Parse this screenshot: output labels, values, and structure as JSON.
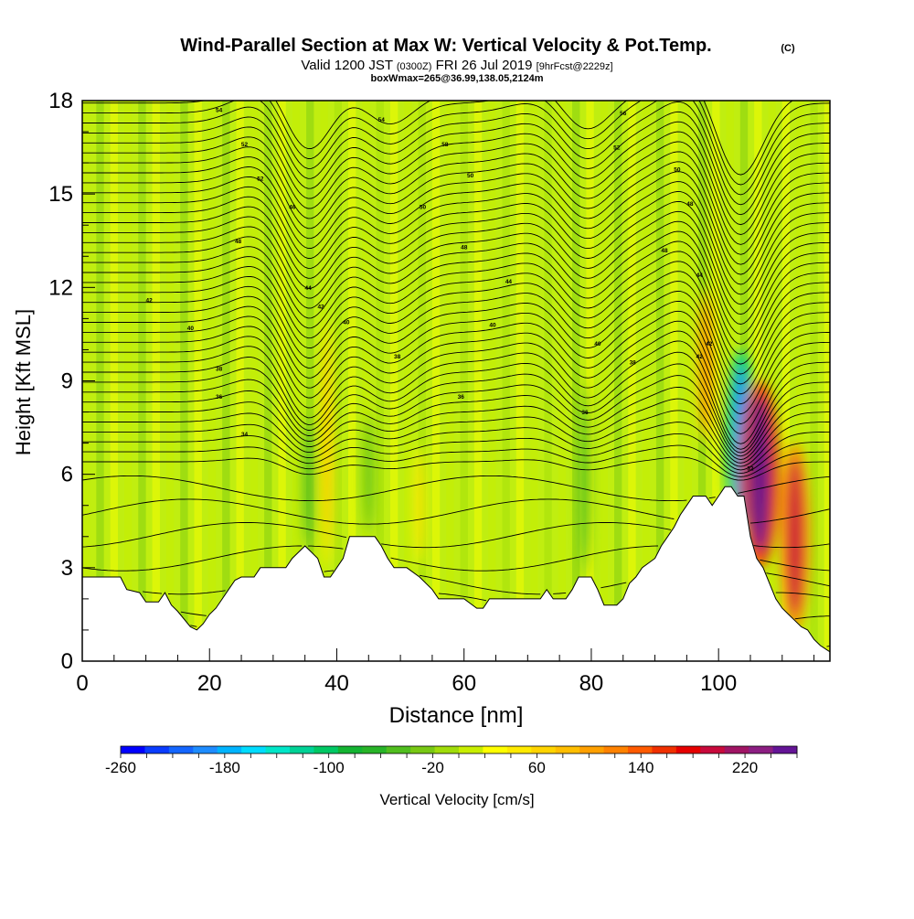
{
  "header": {
    "title": "Wind-Parallel Section at Max W: Vertical Velocity & Pot.Temp.",
    "copyright": "(C)",
    "valid_main": "Valid 1200 JST",
    "valid_utc": "(0300Z)",
    "valid_date": "FRI 26 Jul 2019",
    "forecast": "[9hrFcst@2229z]",
    "box_info": "boxWmax=265@36.99,138.05,2124m"
  },
  "chart_data": {
    "type": "heatmap",
    "xlabel": "Distance [nm]",
    "ylabel": "Height [Kft MSL]",
    "xlim": [
      0,
      117.5
    ],
    "ylim": [
      0,
      18
    ],
    "x_ticks": [
      0,
      20,
      40,
      60,
      80,
      100
    ],
    "x_tick_labels": [
      "0",
      "20",
      "40",
      "60",
      "80",
      "100"
    ],
    "y_ticks": [
      0,
      3,
      6,
      9,
      12,
      15,
      18
    ],
    "y_tick_labels": [
      "0",
      "3",
      "6",
      "9",
      "12",
      "15",
      "18"
    ],
    "grid": false,
    "colorbar": {
      "label": "Vertical Velocity [cm/s]",
      "min": -260,
      "max": 260,
      "step": 20,
      "tick_values": [
        -260,
        -180,
        -100,
        -20,
        60,
        140,
        220
      ],
      "tick_labels": [
        "-260",
        "-180",
        "-100",
        "-20",
        "60",
        "140",
        "220"
      ],
      "colors": [
        "#0000ff",
        "#0a3cff",
        "#1466ff",
        "#1e8cff",
        "#00b4ff",
        "#00dcff",
        "#00e6c8",
        "#00d296",
        "#00c864",
        "#14b432",
        "#28b428",
        "#50be1e",
        "#78c814",
        "#a0dc0a",
        "#c8ee00",
        "#ffff00",
        "#ffea00",
        "#ffd400",
        "#ffbe00",
        "#ffa000",
        "#ff8200",
        "#ff5a00",
        "#f03000",
        "#e60000",
        "#c80a3c",
        "#a01464",
        "#8c1e82",
        "#641496"
      ]
    },
    "terrain_profile": {
      "description": "terrain height along section (Kft), masked white below",
      "points": [
        [
          0,
          2.7
        ],
        [
          6,
          2.7
        ],
        [
          7,
          2.3
        ],
        [
          9,
          2.2
        ],
        [
          10,
          1.9
        ],
        [
          12,
          1.9
        ],
        [
          13,
          2.2
        ],
        [
          14,
          1.8
        ],
        [
          15,
          1.6
        ],
        [
          17,
          1.1
        ],
        [
          18,
          1.0
        ],
        [
          19,
          1.2
        ],
        [
          20,
          1.5
        ],
        [
          21,
          1.7
        ],
        [
          22,
          2.0
        ],
        [
          23,
          2.3
        ],
        [
          24,
          2.6
        ],
        [
          25,
          2.7
        ],
        [
          27,
          2.7
        ],
        [
          28,
          3.0
        ],
        [
          32,
          3.0
        ],
        [
          33,
          3.3
        ],
        [
          35,
          3.7
        ],
        [
          37,
          3.3
        ],
        [
          38,
          2.7
        ],
        [
          39,
          2.7
        ],
        [
          40,
          3.0
        ],
        [
          41,
          3.3
        ],
        [
          42,
          4.0
        ],
        [
          46,
          4.0
        ],
        [
          47,
          3.7
        ],
        [
          48,
          3.3
        ],
        [
          49,
          3.0
        ],
        [
          51,
          3.0
        ],
        [
          53,
          2.7
        ],
        [
          55,
          2.3
        ],
        [
          56,
          2.0
        ],
        [
          60,
          2.0
        ],
        [
          62,
          1.7
        ],
        [
          63,
          1.7
        ],
        [
          64,
          2.0
        ],
        [
          72,
          2.0
        ],
        [
          73,
          2.3
        ],
        [
          74,
          2.0
        ],
        [
          76,
          2.0
        ],
        [
          77,
          2.3
        ],
        [
          78,
          2.7
        ],
        [
          80,
          2.7
        ],
        [
          81,
          2.3
        ],
        [
          82,
          1.8
        ],
        [
          84,
          1.8
        ],
        [
          85,
          2.0
        ],
        [
          86,
          2.5
        ],
        [
          87,
          2.7
        ],
        [
          88,
          3.0
        ],
        [
          90,
          3.3
        ],
        [
          91,
          3.7
        ],
        [
          92,
          4.0
        ],
        [
          93,
          4.3
        ],
        [
          94,
          4.7
        ],
        [
          95,
          5.0
        ],
        [
          96,
          5.3
        ],
        [
          98,
          5.3
        ],
        [
          99,
          5.0
        ],
        [
          100,
          5.3
        ],
        [
          101,
          5.6
        ],
        [
          102,
          5.6
        ],
        [
          103,
          5.3
        ],
        [
          104,
          5.3
        ],
        [
          105,
          4.0
        ],
        [
          106,
          3.3
        ],
        [
          107,
          3.0
        ],
        [
          108,
          2.5
        ],
        [
          109,
          2.0
        ],
        [
          110,
          1.7
        ],
        [
          111,
          1.5
        ],
        [
          112,
          1.3
        ],
        [
          113,
          1.1
        ],
        [
          114,
          1.0
        ],
        [
          115,
          0.7
        ],
        [
          116,
          0.5
        ],
        [
          117.5,
          0.3
        ]
      ]
    },
    "vertical_velocity_features": [
      {
        "x": 35.5,
        "y_bottom": 3.5,
        "y_top": 8,
        "w_cm_s": -60,
        "note": "downdraft"
      },
      {
        "x": 38.5,
        "y_bottom": 3,
        "y_top": 11,
        "w_cm_s": 80,
        "note": "updraft"
      },
      {
        "x": 45,
        "y_bottom": 4,
        "y_top": 8,
        "w_cm_s": -40,
        "note": "downdraft"
      },
      {
        "x": 53,
        "y_bottom": 3,
        "y_top": 7,
        "w_cm_s": 60,
        "note": "updraft"
      },
      {
        "x": 79,
        "y_bottom": 2.7,
        "y_top": 9,
        "w_cm_s": -60,
        "note": "downdraft"
      },
      {
        "x": 98,
        "y_bottom": 7,
        "y_top": 12,
        "w_cm_s": 120,
        "note": "updraft"
      },
      {
        "x": 103.5,
        "y_bottom": 4,
        "y_top": 10,
        "w_cm_s": -200,
        "note": "downdraft"
      },
      {
        "x": 106.5,
        "y_bottom": 3,
        "y_top": 9,
        "w_cm_s": 265,
        "note": "max updraft"
      },
      {
        "x": 112,
        "y_bottom": 1,
        "y_top": 7,
        "w_cm_s": 200,
        "note": "updraft"
      }
    ],
    "isentrope_labels": [
      {
        "x": 21.5,
        "y": 17.7,
        "text": "54"
      },
      {
        "x": 47,
        "y": 17.4,
        "text": "54"
      },
      {
        "x": 85,
        "y": 17.6,
        "text": "56"
      },
      {
        "x": 25.5,
        "y": 16.6,
        "text": "52"
      },
      {
        "x": 57,
        "y": 16.6,
        "text": "58"
      },
      {
        "x": 84,
        "y": 16.5,
        "text": "52"
      },
      {
        "x": 28,
        "y": 15.5,
        "text": "52"
      },
      {
        "x": 61,
        "y": 15.6,
        "text": "50"
      },
      {
        "x": 93.5,
        "y": 15.8,
        "text": "50"
      },
      {
        "x": 33,
        "y": 14.6,
        "text": "46"
      },
      {
        "x": 53.5,
        "y": 14.6,
        "text": "50"
      },
      {
        "x": 95.5,
        "y": 14.7,
        "text": "48"
      },
      {
        "x": 24.5,
        "y": 13.5,
        "text": "48"
      },
      {
        "x": 60,
        "y": 13.3,
        "text": "48"
      },
      {
        "x": 91.5,
        "y": 13.2,
        "text": "48"
      },
      {
        "x": 35.5,
        "y": 12.0,
        "text": "44"
      },
      {
        "x": 67,
        "y": 12.2,
        "text": "44"
      },
      {
        "x": 97,
        "y": 12.4,
        "text": "44"
      },
      {
        "x": 10.5,
        "y": 11.6,
        "text": "42"
      },
      {
        "x": 37.5,
        "y": 11.4,
        "text": "42"
      },
      {
        "x": 41.5,
        "y": 10.9,
        "text": "40"
      },
      {
        "x": 64.5,
        "y": 10.8,
        "text": "40"
      },
      {
        "x": 17,
        "y": 10.7,
        "text": "40"
      },
      {
        "x": 98.5,
        "y": 10.2,
        "text": "42"
      },
      {
        "x": 97,
        "y": 9.8,
        "text": "42"
      },
      {
        "x": 49.5,
        "y": 9.8,
        "text": "38"
      },
      {
        "x": 81,
        "y": 10.2,
        "text": "40"
      },
      {
        "x": 86.5,
        "y": 9.6,
        "text": "38"
      },
      {
        "x": 21.5,
        "y": 9.4,
        "text": "38"
      },
      {
        "x": 21.5,
        "y": 8.5,
        "text": "36"
      },
      {
        "x": 59.5,
        "y": 8.5,
        "text": "36"
      },
      {
        "x": 79,
        "y": 8.0,
        "text": "36"
      },
      {
        "x": 25.5,
        "y": 7.3,
        "text": "34"
      },
      {
        "x": 105,
        "y": 6.2,
        "text": "32"
      }
    ]
  }
}
